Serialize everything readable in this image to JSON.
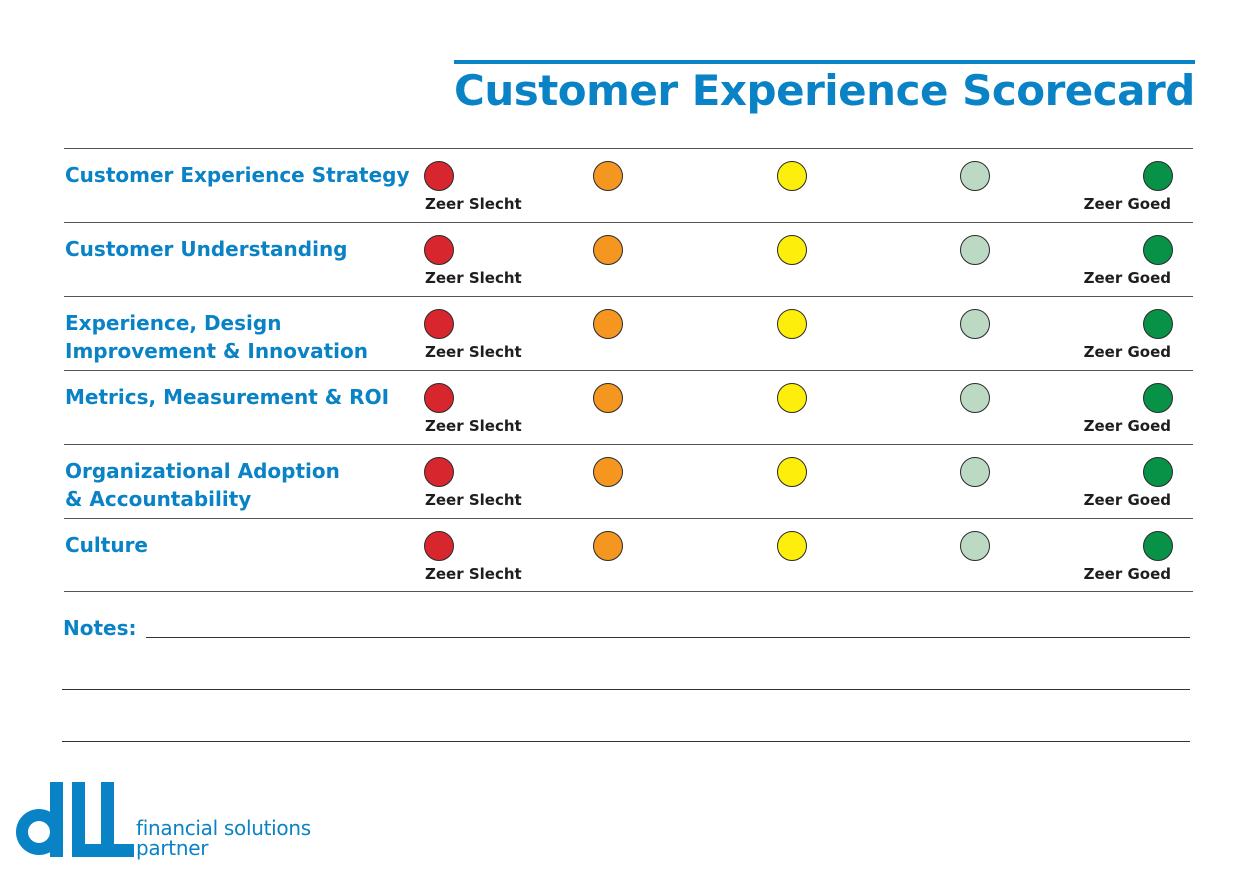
{
  "title": "Customer Experience Scorecard",
  "scale": {
    "low_label": "Zeer Slecht",
    "high_label": "Zeer Goed",
    "colors": [
      "#d7262d",
      "#f4961f",
      "#fdee0c",
      "#bcd9c4",
      "#079247"
    ]
  },
  "rows": [
    {
      "label": "Customer Experience Strategy"
    },
    {
      "label": "Customer Understanding"
    },
    {
      "label": "Experience, Design\nImprovement & Innovation"
    },
    {
      "label": "Metrics, Measurement & ROI"
    },
    {
      "label": "Organizational Adoption\n& Accountability"
    },
    {
      "label": "Culture"
    }
  ],
  "notes": {
    "label": "Notes:"
  },
  "brand": {
    "logo_name": "dll-logo",
    "tagline_line1": "financial solutions",
    "tagline_line2": "partner",
    "accent": "#0a82c6"
  }
}
